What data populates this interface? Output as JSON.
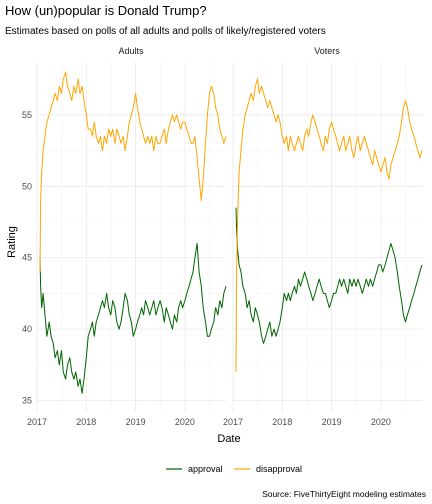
{
  "chart_data": {
    "type": "line",
    "title": "How (un)popular is Donald Trump?",
    "subtitle": "Estimates based on polls of all adults and polls of likely/registered voters",
    "xlabel": "Date",
    "ylabel": "Rating",
    "caption": "Source: FiveThirtyEight modeling estimates",
    "x_ticks": [
      "2017",
      "2018",
      "2019",
      "2020"
    ],
    "x_range": [
      "2017-01-01",
      "2020-10-31"
    ],
    "y_ticks": [
      35,
      40,
      45,
      50,
      55
    ],
    "ylim": [
      34.2,
      58.7
    ],
    "grid": true,
    "legend_position": "bottom",
    "legend": [
      {
        "key": "approval",
        "label": "approval",
        "color": "#006400"
      },
      {
        "key": "disapproval",
        "label": "disapproval",
        "color": "#FFA500"
      }
    ],
    "facets": [
      {
        "title": "Adults",
        "series": [
          {
            "key": "approval",
            "x": [
              "2017-01-23",
              "2017-01-28",
              "2017-02-05",
              "2017-02-15",
              "2017-03-01",
              "2017-03-15",
              "2017-04-01",
              "2017-04-15",
              "2017-05-01",
              "2017-05-15",
              "2017-06-01",
              "2017-06-15",
              "2017-07-01",
              "2017-07-15",
              "2017-08-01",
              "2017-08-15",
              "2017-09-01",
              "2017-09-15",
              "2017-10-01",
              "2017-10-15",
              "2017-11-01",
              "2017-11-15",
              "2017-12-01",
              "2017-12-15",
              "2018-01-01",
              "2018-01-15",
              "2018-02-01",
              "2018-02-15",
              "2018-03-01",
              "2018-03-15",
              "2018-04-01",
              "2018-04-15",
              "2018-05-01",
              "2018-05-15",
              "2018-06-01",
              "2018-06-15",
              "2018-07-01",
              "2018-07-15",
              "2018-08-01",
              "2018-08-15",
              "2018-09-01",
              "2018-09-15",
              "2018-10-01",
              "2018-10-15",
              "2018-11-01",
              "2018-11-15",
              "2018-12-01",
              "2018-12-15",
              "2019-01-01",
              "2019-01-15",
              "2019-02-01",
              "2019-02-15",
              "2019-03-01",
              "2019-03-15",
              "2019-04-01",
              "2019-04-15",
              "2019-05-01",
              "2019-05-15",
              "2019-06-01",
              "2019-06-15",
              "2019-07-01",
              "2019-07-15",
              "2019-08-01",
              "2019-08-15",
              "2019-09-01",
              "2019-09-15",
              "2019-10-01",
              "2019-10-15",
              "2019-11-01",
              "2019-11-15",
              "2019-12-01",
              "2019-12-15",
              "2020-01-01",
              "2020-01-15",
              "2020-02-01",
              "2020-02-15",
              "2020-03-01",
              "2020-03-15",
              "2020-03-31",
              "2020-04-15",
              "2020-05-01",
              "2020-05-15",
              "2020-06-01",
              "2020-06-15",
              "2020-07-01",
              "2020-07-15",
              "2020-08-01",
              "2020-08-15",
              "2020-09-01",
              "2020-09-15",
              "2020-10-01",
              "2020-10-15",
              "2020-10-31"
            ],
            "y": [
              45.0,
              43.0,
              41.5,
              42.5,
              41.0,
              39.5,
              40.5,
              39.5,
              39.0,
              38.0,
              38.5,
              37.5,
              38.5,
              37.0,
              36.5,
              37.5,
              38.0,
              37.0,
              36.5,
              37.0,
              36.0,
              36.5,
              35.5,
              36.5,
              38.0,
              39.5,
              40.0,
              40.5,
              39.5,
              40.5,
              41.0,
              41.5,
              42.0,
              41.5,
              42.5,
              41.5,
              41.0,
              42.0,
              41.5,
              40.5,
              40.0,
              40.5,
              41.5,
              42.5,
              42.0,
              41.0,
              40.5,
              39.5,
              40.0,
              40.5,
              41.0,
              41.5,
              41.0,
              42.0,
              41.5,
              41.0,
              41.5,
              42.0,
              41.0,
              41.5,
              42.0,
              41.5,
              40.5,
              41.5,
              41.0,
              40.5,
              40.0,
              41.0,
              40.5,
              41.5,
              42.0,
              41.5,
              42.0,
              42.5,
              43.0,
              43.5,
              44.0,
              45.0,
              46.0,
              44.0,
              43.0,
              41.5,
              40.5,
              39.5,
              39.5,
              40.0,
              40.5,
              41.5,
              41.0,
              42.0,
              41.5,
              42.5,
              43.0
            ]
          },
          {
            "key": "disapproval",
            "x": [
              "2017-01-23",
              "2017-01-28",
              "2017-02-05",
              "2017-02-15",
              "2017-03-01",
              "2017-03-15",
              "2017-04-01",
              "2017-04-15",
              "2017-05-01",
              "2017-05-15",
              "2017-06-01",
              "2017-06-15",
              "2017-07-01",
              "2017-07-15",
              "2017-08-01",
              "2017-08-15",
              "2017-09-01",
              "2017-09-15",
              "2017-10-01",
              "2017-10-15",
              "2017-11-01",
              "2017-11-15",
              "2017-12-01",
              "2017-12-15",
              "2018-01-01",
              "2018-01-15",
              "2018-02-01",
              "2018-02-15",
              "2018-03-01",
              "2018-03-15",
              "2018-04-01",
              "2018-04-15",
              "2018-05-01",
              "2018-05-15",
              "2018-06-01",
              "2018-06-15",
              "2018-07-01",
              "2018-07-15",
              "2018-08-01",
              "2018-08-15",
              "2018-09-01",
              "2018-09-15",
              "2018-10-01",
              "2018-10-15",
              "2018-11-01",
              "2018-11-15",
              "2018-12-01",
              "2018-12-15",
              "2019-01-01",
              "2019-01-15",
              "2019-02-01",
              "2019-02-15",
              "2019-03-01",
              "2019-03-15",
              "2019-04-01",
              "2019-04-15",
              "2019-05-01",
              "2019-05-15",
              "2019-06-01",
              "2019-06-15",
              "2019-07-01",
              "2019-07-15",
              "2019-08-01",
              "2019-08-15",
              "2019-09-01",
              "2019-09-15",
              "2019-10-01",
              "2019-10-15",
              "2019-11-01",
              "2019-11-15",
              "2019-12-01",
              "2019-12-15",
              "2020-01-01",
              "2020-01-15",
              "2020-02-01",
              "2020-02-15",
              "2020-03-01",
              "2020-03-15",
              "2020-03-31",
              "2020-04-15",
              "2020-05-01",
              "2020-05-15",
              "2020-06-01",
              "2020-06-15",
              "2020-07-01",
              "2020-07-15",
              "2020-08-01",
              "2020-08-15",
              "2020-09-01",
              "2020-09-15",
              "2020-10-01",
              "2020-10-15",
              "2020-10-31"
            ],
            "y": [
              44.0,
              49.0,
              51.0,
              52.5,
              53.5,
              54.5,
              55.0,
              55.5,
              56.0,
              56.5,
              56.0,
              57.0,
              56.5,
              57.5,
              58.0,
              57.0,
              56.5,
              56.0,
              57.0,
              56.5,
              57.5,
              56.5,
              57.0,
              56.0,
              55.0,
              54.0,
              54.0,
              53.5,
              54.5,
              53.5,
              53.0,
              53.5,
              52.5,
              53.5,
              53.0,
              54.0,
              53.5,
              54.0,
              53.0,
              54.0,
              53.5,
              53.0,
              53.5,
              52.5,
              53.5,
              54.5,
              55.0,
              55.5,
              56.5,
              55.5,
              54.5,
              54.0,
              53.5,
              53.0,
              53.5,
              53.0,
              53.5,
              52.5,
              53.5,
              53.0,
              53.0,
              53.5,
              54.0,
              53.0,
              54.0,
              54.5,
              55.0,
              54.5,
              55.0,
              54.5,
              54.0,
              54.5,
              54.5,
              54.0,
              53.5,
              53.0,
              53.0,
              53.5,
              52.0,
              50.5,
              49.0,
              50.5,
              53.0,
              55.0,
              56.5,
              57.0,
              56.5,
              55.5,
              55.0,
              54.0,
              53.5,
              53.0,
              53.5
            ]
          }
        ]
      },
      {
        "title": "Voters",
        "series": [
          {
            "key": "approval",
            "x": [
              "2017-01-23",
              "2017-01-28",
              "2017-02-05",
              "2017-02-15",
              "2017-03-01",
              "2017-03-15",
              "2017-04-01",
              "2017-04-15",
              "2017-05-01",
              "2017-05-15",
              "2017-06-01",
              "2017-06-15",
              "2017-07-01",
              "2017-07-15",
              "2017-08-01",
              "2017-08-15",
              "2017-09-01",
              "2017-09-15",
              "2017-10-01",
              "2017-10-15",
              "2017-11-01",
              "2017-11-15",
              "2017-12-01",
              "2017-12-15",
              "2018-01-01",
              "2018-01-15",
              "2018-02-01",
              "2018-02-15",
              "2018-03-01",
              "2018-03-15",
              "2018-04-01",
              "2018-04-15",
              "2018-05-01",
              "2018-05-15",
              "2018-06-01",
              "2018-06-15",
              "2018-07-01",
              "2018-07-15",
              "2018-08-01",
              "2018-08-15",
              "2018-09-01",
              "2018-09-15",
              "2018-10-01",
              "2018-10-15",
              "2018-11-01",
              "2018-11-15",
              "2018-12-01",
              "2018-12-15",
              "2019-01-01",
              "2019-01-15",
              "2019-02-01",
              "2019-02-15",
              "2019-03-01",
              "2019-03-15",
              "2019-04-01",
              "2019-04-15",
              "2019-05-01",
              "2019-05-15",
              "2019-06-01",
              "2019-06-15",
              "2019-07-01",
              "2019-07-15",
              "2019-08-01",
              "2019-08-15",
              "2019-09-01",
              "2019-09-15",
              "2019-10-01",
              "2019-10-15",
              "2019-11-01",
              "2019-11-15",
              "2019-12-01",
              "2019-12-15",
              "2020-01-01",
              "2020-01-15",
              "2020-02-01",
              "2020-02-15",
              "2020-03-01",
              "2020-03-15",
              "2020-03-31",
              "2020-04-15",
              "2020-05-01",
              "2020-05-15",
              "2020-06-01",
              "2020-06-15",
              "2020-07-01",
              "2020-07-15",
              "2020-08-01",
              "2020-08-15",
              "2020-09-01",
              "2020-09-15",
              "2020-10-01",
              "2020-10-15",
              "2020-10-31"
            ],
            "y": [
              48.5,
              47.0,
              45.5,
              44.5,
              44.0,
              43.0,
              42.5,
              41.5,
              42.0,
              41.0,
              40.5,
              41.5,
              41.0,
              40.5,
              39.5,
              39.0,
              39.5,
              40.0,
              40.5,
              39.5,
              40.0,
              39.5,
              40.0,
              40.5,
              41.5,
              42.5,
              42.0,
              42.5,
              42.0,
              42.5,
              43.0,
              42.5,
              43.5,
              43.0,
              43.5,
              44.0,
              43.5,
              43.0,
              42.5,
              42.0,
              42.5,
              43.0,
              43.5,
              43.0,
              42.5,
              42.5,
              42.0,
              41.5,
              42.0,
              42.5,
              42.5,
              43.0,
              43.5,
              43.0,
              43.5,
              43.0,
              42.5,
              43.5,
              43.0,
              43.5,
              43.0,
              43.5,
              43.0,
              42.5,
              43.0,
              43.5,
              43.0,
              43.5,
              43.0,
              43.5,
              44.0,
              44.5,
              44.5,
              44.0,
              44.5,
              45.0,
              45.5,
              46.0,
              45.5,
              45.0,
              44.0,
              43.0,
              42.0,
              41.0,
              40.5,
              41.0,
              41.5,
              42.0,
              42.5,
              43.0,
              43.5,
              44.0,
              44.5
            ]
          },
          {
            "key": "disapproval",
            "x": [
              "2017-01-23",
              "2017-01-28",
              "2017-02-05",
              "2017-02-15",
              "2017-03-01",
              "2017-03-15",
              "2017-04-01",
              "2017-04-15",
              "2017-05-01",
              "2017-05-15",
              "2017-06-01",
              "2017-06-15",
              "2017-07-01",
              "2017-07-15",
              "2017-08-01",
              "2017-08-15",
              "2017-09-01",
              "2017-09-15",
              "2017-10-01",
              "2017-10-15",
              "2017-11-01",
              "2017-11-15",
              "2017-12-01",
              "2017-12-15",
              "2018-01-01",
              "2018-01-15",
              "2018-02-01",
              "2018-02-15",
              "2018-03-01",
              "2018-03-15",
              "2018-04-01",
              "2018-04-15",
              "2018-05-01",
              "2018-05-15",
              "2018-06-01",
              "2018-06-15",
              "2018-07-01",
              "2018-07-15",
              "2018-08-01",
              "2018-08-15",
              "2018-09-01",
              "2018-09-15",
              "2018-10-01",
              "2018-10-15",
              "2018-11-01",
              "2018-11-15",
              "2018-12-01",
              "2018-12-15",
              "2019-01-01",
              "2019-01-15",
              "2019-02-01",
              "2019-02-15",
              "2019-03-01",
              "2019-03-15",
              "2019-04-01",
              "2019-04-15",
              "2019-05-01",
              "2019-05-15",
              "2019-06-01",
              "2019-06-15",
              "2019-07-01",
              "2019-07-15",
              "2019-08-01",
              "2019-08-15",
              "2019-09-01",
              "2019-09-15",
              "2019-10-01",
              "2019-10-15",
              "2019-11-01",
              "2019-11-15",
              "2019-12-01",
              "2019-12-15",
              "2020-01-01",
              "2020-01-15",
              "2020-02-01",
              "2020-02-15",
              "2020-03-01",
              "2020-03-15",
              "2020-03-31",
              "2020-04-15",
              "2020-05-01",
              "2020-05-15",
              "2020-06-01",
              "2020-06-15",
              "2020-07-01",
              "2020-07-15",
              "2020-08-01",
              "2020-08-15",
              "2020-09-01",
              "2020-09-15",
              "2020-10-01",
              "2020-10-15",
              "2020-10-31"
            ],
            "y": [
              37.0,
              44.0,
              48.0,
              51.0,
              52.5,
              54.0,
              55.0,
              55.5,
              56.0,
              56.5,
              56.0,
              57.0,
              57.5,
              56.5,
              57.0,
              56.5,
              56.0,
              55.5,
              56.0,
              55.5,
              55.0,
              54.5,
              55.0,
              54.5,
              53.5,
              53.0,
              53.5,
              52.5,
              53.5,
              53.0,
              52.5,
              53.0,
              53.5,
              53.0,
              52.5,
              53.5,
              54.0,
              53.5,
              54.5,
              55.0,
              54.5,
              54.0,
              53.5,
              53.0,
              52.5,
              53.5,
              53.0,
              54.0,
              54.5,
              54.0,
              53.5,
              53.0,
              52.5,
              53.0,
              53.5,
              52.5,
              53.0,
              53.5,
              52.5,
              52.0,
              53.0,
              53.5,
              52.5,
              53.0,
              53.5,
              53.0,
              52.5,
              52.0,
              51.5,
              52.5,
              52.0,
              51.5,
              51.0,
              51.5,
              52.0,
              51.0,
              50.5,
              51.5,
              52.0,
              52.5,
              53.0,
              53.5,
              54.5,
              55.5,
              56.0,
              55.5,
              54.5,
              54.0,
              53.5,
              53.0,
              52.5,
              52.0,
              52.5
            ]
          }
        ]
      }
    ]
  }
}
